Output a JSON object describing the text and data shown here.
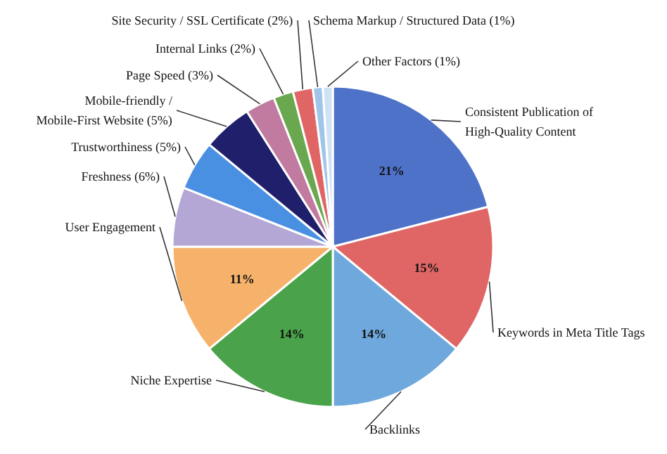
{
  "chart_data": {
    "type": "pie",
    "categories": [
      "Consistent Publication of\nHigh-Quality Content",
      "Keywords in Meta Title Tags",
      "Backlinks",
      "Niche Expertise",
      "User Engagement",
      "Freshness (6%)",
      "Trustworthiness (5%)",
      "Mobile-friendly /\nMobile-First Website (5%)",
      "Page Speed (3%)",
      "Internal Links (2%)",
      "Site Security / SSL Certificate (2%)",
      "Schema Markup / Structured Data (1%)",
      "Other Factors (1%)"
    ],
    "values": [
      21,
      15,
      14,
      14,
      11,
      6,
      5,
      5,
      3,
      2,
      2,
      1,
      1
    ],
    "colors": [
      "#4f72c9",
      "#e06666",
      "#6fa8dc",
      "#4aa24a",
      "#f6b26b",
      "#b4a7d6",
      "#4a90e2",
      "#1f1f6b",
      "#c27ba0",
      "#6aa84f",
      "#e06666",
      "#9fc5e8",
      "#cfe2f3"
    ],
    "value_labels": [
      "21%",
      "15%",
      "14%",
      "14%",
      "11%",
      null,
      null,
      null,
      null,
      null,
      null,
      null,
      null
    ]
  }
}
